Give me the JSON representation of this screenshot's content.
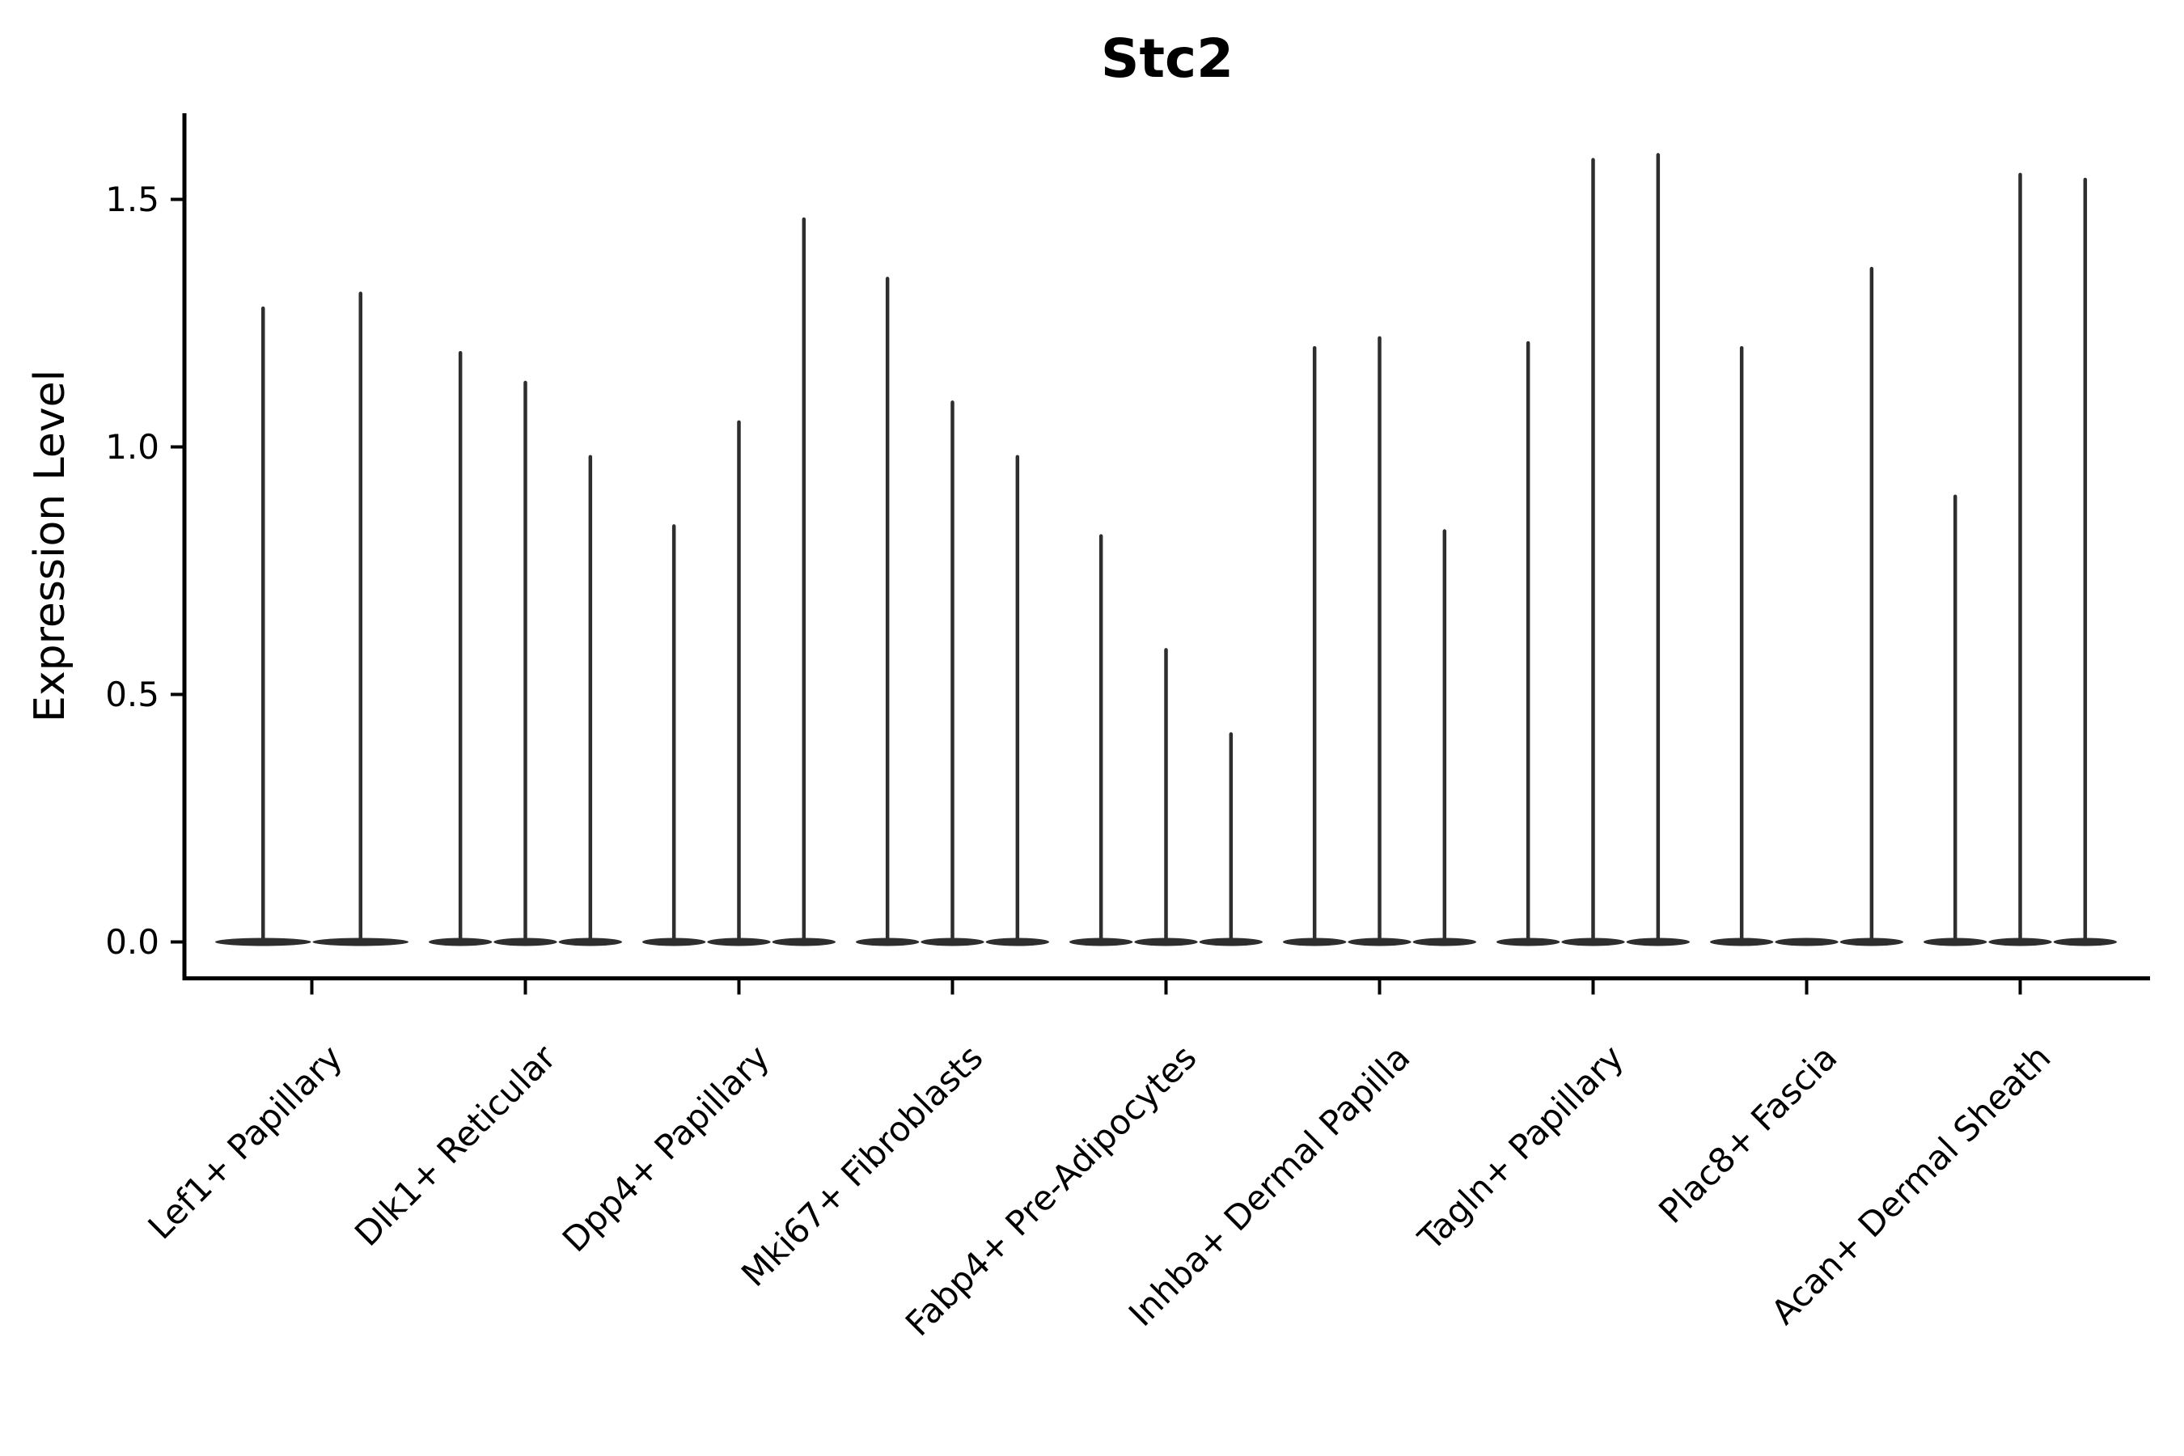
{
  "title": "Stc2",
  "y_axis_label": "Expression Level",
  "colors": {
    "violin": "#2e2e2e",
    "axis": "#000000",
    "text": "#000000",
    "background": "#ffffff"
  },
  "chart_data": {
    "type": "violin",
    "title": "Stc2",
    "xlabel": "",
    "ylabel": "Expression Level",
    "yticks": [
      "0.0",
      "0.5",
      "1.0",
      "1.5"
    ],
    "ylim": [
      -0.07,
      1.67
    ],
    "grid": false,
    "legend": null,
    "description": "Single-cell expression violin plot; each cell-type group contains 2-3 very thin violins: a flat near-zero density body at 0 plus a thin spike reaching the maximum expression value.",
    "categories": [
      "Lef1+ Papillary",
      "Dlk1+ Reticular",
      "Dpp4+ Papillary",
      "Mki67+ Fibroblasts",
      "Fabp4+ Pre-Adipocytes",
      "Inhba+ Dermal Papilla",
      "Tagln+ Papillary",
      "Plac8+ Fascia",
      "Acan+ Dermal Sheath"
    ],
    "groups": [
      {
        "label": "Lef1+ Papillary",
        "violin_max_values": [
          1.28,
          1.31
        ]
      },
      {
        "label": "Dlk1+ Reticular",
        "violin_max_values": [
          1.19,
          1.13,
          0.98
        ]
      },
      {
        "label": "Dpp4+ Papillary",
        "violin_max_values": [
          0.84,
          1.05,
          1.46
        ]
      },
      {
        "label": "Mki67+ Fibroblasts",
        "violin_max_values": [
          1.34,
          1.09,
          0.98
        ]
      },
      {
        "label": "Fabp4+ Pre-Adipocytes",
        "violin_max_values": [
          0.82,
          0.59,
          0.42
        ]
      },
      {
        "label": "Inhba+ Dermal Papilla",
        "violin_max_values": [
          1.2,
          1.22,
          0.83
        ]
      },
      {
        "label": "Tagln+ Papillary",
        "violin_max_values": [
          1.21,
          1.58,
          1.59
        ]
      },
      {
        "label": "Plac8+ Fascia",
        "violin_max_values": [
          1.2,
          0.0,
          1.36
        ]
      },
      {
        "label": "Acan+ Dermal Sheath",
        "violin_max_values": [
          0.9,
          1.55,
          1.54
        ]
      }
    ]
  }
}
